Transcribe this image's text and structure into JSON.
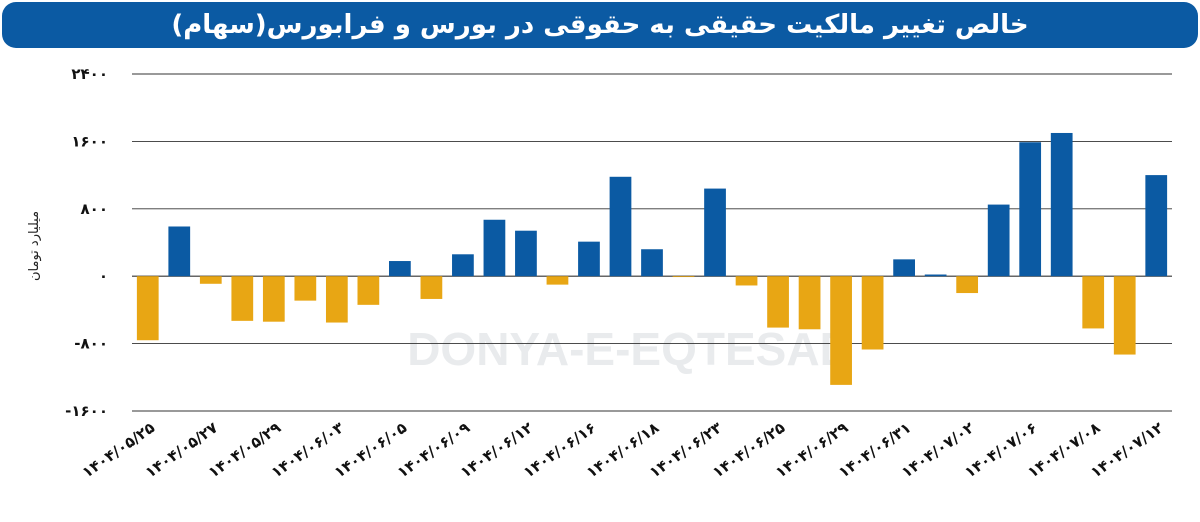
{
  "header": {
    "title": "خالص تغییر مالکیت حقیقی به حقوقی در بورس و فرابورس(سهام)"
  },
  "colors": {
    "header_bg": "#0b5aa3",
    "positive": "#0b5aa3",
    "negative": "#e8a614",
    "grid": "#333333"
  },
  "watermark": {
    "text": "DONYA-E-EQTESAD"
  },
  "chart_data": {
    "type": "bar",
    "title": "خالص تغییر مالکیت حقیقی به حقوقی در بورس و فرابورس(سهام)",
    "ylabel": "میلیارد تومان",
    "xlabel": "",
    "ylim": [
      -1600,
      2400
    ],
    "yticks": [
      2400,
      1600,
      800,
      0,
      -800,
      -1600
    ],
    "ytick_labels": [
      "۲۴۰۰",
      "۱۶۰۰",
      "۸۰۰",
      "۰",
      "-۸۰۰",
      "-۱۶۰۰"
    ],
    "grid": true,
    "categories": [
      "۱۴۰۴/۰۵/۲۵",
      "",
      "۱۴۰۴/۰۵/۲۷",
      "",
      "۱۴۰۴/۰۵/۲۹",
      "",
      "۱۴۰۴/۰۶/۰۳",
      "",
      "۱۴۰۴/۰۶/۰۵",
      "",
      "۱۴۰۴/۰۶/۰۹",
      "",
      "۱۴۰۴/۰۶/۱۲",
      "",
      "۱۴۰۴/۰۶/۱۶",
      "",
      "۱۴۰۴/۰۶/۱۸",
      "",
      "۱۴۰۴/۰۶/۲۳",
      "",
      "۱۴۰۴/۰۶/۲۵",
      "",
      "۱۴۰۴/۰۶/۲۹",
      "",
      "۱۴۰۴/۰۶/۳۱",
      "",
      "۱۴۰۴/۰۷/۰۲",
      "",
      "۱۴۰۴/۰۷/۰۶",
      "",
      "۱۴۰۴/۰۷/۰۸",
      "",
      "۱۴۰۴/۰۷/۱۲"
    ],
    "values": [
      -760,
      590,
      -90,
      -530,
      -540,
      -290,
      -550,
      -340,
      180,
      -270,
      260,
      670,
      540,
      -100,
      410,
      1180,
      320,
      -10,
      1040,
      -110,
      -610,
      -630,
      -1290,
      -870,
      200,
      20,
      -200,
      850,
      1590,
      1700,
      -620,
      -930,
      1200
    ]
  }
}
